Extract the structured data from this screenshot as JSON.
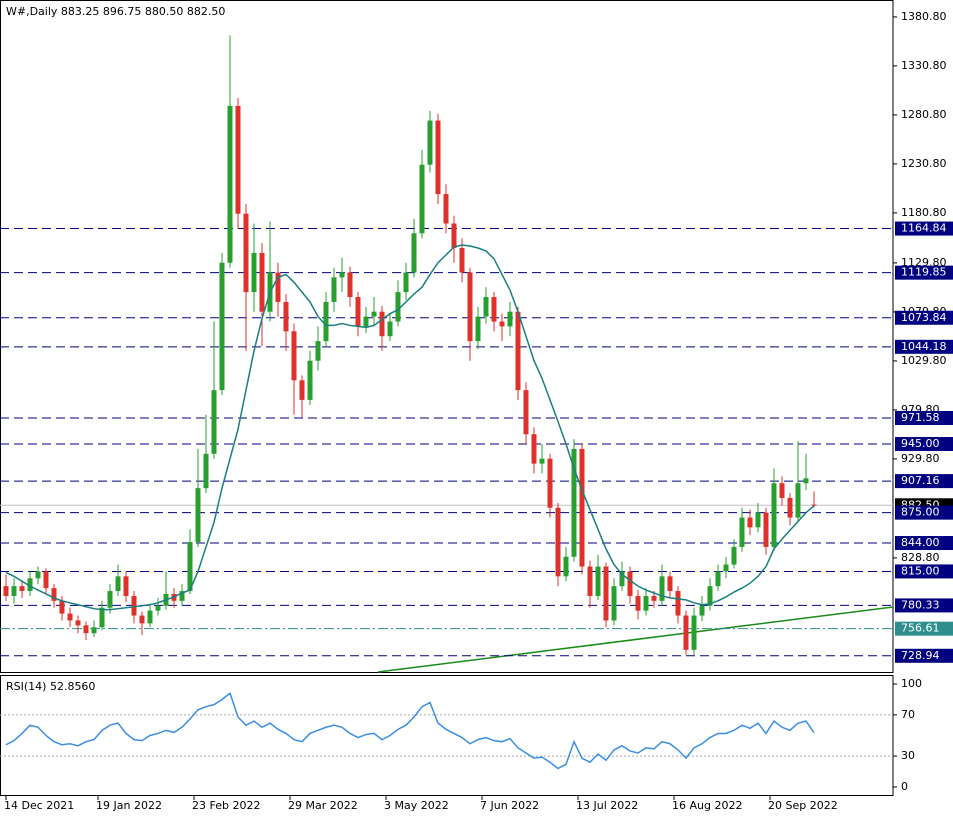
{
  "chart_data": {
    "type": "candlestick",
    "title": "W#,Daily  883.25 896.75 880.50 882.50",
    "up_color": "#27a12d",
    "down_color": "#e0302a",
    "ma_color": "#1a7f7f",
    "rsi_color": "#3a8ee6",
    "ylim": [
      712.4,
      1396
    ],
    "yticks": [
      {
        "value": 1380.8,
        "label": "1380.80"
      },
      {
        "value": 1330.8,
        "label": "1330.80"
      },
      {
        "value": 1280.8,
        "label": "1280.80"
      },
      {
        "value": 1230.8,
        "label": "1230.80"
      },
      {
        "value": 1180.8,
        "label": "1180.80"
      },
      {
        "value": 1129.8,
        "label": "1129.80"
      },
      {
        "value": 1079.8,
        "label": "1079.80"
      },
      {
        "value": 1029.8,
        "label": "1029.80"
      },
      {
        "value": 979.8,
        "label": "979.80"
      },
      {
        "value": 929.8,
        "label": "929.80"
      },
      {
        "value": 828.8,
        "label": "828.80"
      }
    ],
    "current": {
      "value": 882.5,
      "label": "882.50"
    },
    "levels": [
      {
        "value": 1164.84,
        "label": "1164.84",
        "color": "#000080",
        "dash": "dashed"
      },
      {
        "value": 1119.85,
        "label": "1119.85",
        "color": "#000080",
        "dash": "dashed"
      },
      {
        "value": 1073.84,
        "label": "1073.84",
        "color": "#000080",
        "dash": "dashed"
      },
      {
        "value": 1044.18,
        "label": "1044.18",
        "color": "#000080",
        "dash": "dashed"
      },
      {
        "value": 971.58,
        "label": "971.58",
        "color": "#000080",
        "dash": "dashed"
      },
      {
        "value": 945,
        "label": "945.00",
        "color": "#000080",
        "dash": "dashed"
      },
      {
        "value": 907.16,
        "label": "907.16",
        "color": "#000080",
        "dash": "dashed"
      },
      {
        "value": 875,
        "label": "875.00",
        "color": "#000080",
        "dash": "dashed"
      },
      {
        "value": 844,
        "label": "844.00",
        "color": "#000080",
        "dash": "dashed"
      },
      {
        "value": 815,
        "label": "815.00",
        "color": "#000080",
        "dash": "dashed"
      },
      {
        "value": 780.33,
        "label": "780.33",
        "color": "#000080",
        "dash": "dashed"
      },
      {
        "value": 756.61,
        "label": "756.61",
        "color": "#2f8f8f",
        "dash": "dashdot"
      },
      {
        "value": 728.94,
        "label": "728.94",
        "color": "#000080",
        "dash": "dashed"
      }
    ],
    "xticks": [
      {
        "value": 0,
        "label": "14 Dec 2021"
      },
      {
        "value": 11.5,
        "label": "19 Jan 2022"
      },
      {
        "value": 23.5,
        "label": "23 Feb 2022"
      },
      {
        "value": 35.5,
        "label": "29 Mar 2022"
      },
      {
        "value": 47.5,
        "label": "3 May 2022"
      },
      {
        "value": 59.5,
        "label": "7 Jun 2022"
      },
      {
        "value": 71.5,
        "label": "13 Jul 2022"
      },
      {
        "value": 83.5,
        "label": "16 Aug 2022"
      },
      {
        "value": 95.5,
        "label": "20 Sep 2022"
      }
    ],
    "candles": [
      [
        800,
        812,
        785,
        790
      ],
      [
        790,
        808,
        782,
        800
      ],
      [
        800,
        806,
        788,
        795
      ],
      [
        795,
        815,
        790,
        808
      ],
      [
        808,
        820,
        802,
        815
      ],
      [
        815,
        818,
        792,
        798
      ],
      [
        798,
        802,
        778,
        785
      ],
      [
        785,
        790,
        765,
        772
      ],
      [
        772,
        778,
        758,
        765
      ],
      [
        765,
        770,
        752,
        760
      ],
      [
        760,
        764,
        745,
        752
      ],
      [
        752,
        765,
        748,
        758
      ],
      [
        758,
        785,
        755,
        778
      ],
      [
        778,
        802,
        772,
        795
      ],
      [
        795,
        822,
        790,
        810
      ],
      [
        810,
        815,
        784,
        790
      ],
      [
        790,
        795,
        762,
        770
      ],
      [
        770,
        774,
        750,
        762
      ],
      [
        762,
        782,
        758,
        775
      ],
      [
        775,
        788,
        770,
        780
      ],
      [
        780,
        815,
        776,
        792
      ],
      [
        792,
        798,
        778,
        785
      ],
      [
        785,
        802,
        780,
        795
      ],
      [
        795,
        858,
        792,
        845
      ],
      [
        845,
        940,
        840,
        900
      ],
      [
        900,
        975,
        895,
        935
      ],
      [
        935,
        1070,
        930,
        1000
      ],
      [
        1000,
        1140,
        995,
        1130
      ],
      [
        1130,
        1362,
        1125,
        1290
      ],
      [
        1290,
        1298,
        1165,
        1180
      ],
      [
        1180,
        1190,
        1040,
        1100
      ],
      [
        1100,
        1170,
        1080,
        1140
      ],
      [
        1140,
        1150,
        1045,
        1080
      ],
      [
        1080,
        1172,
        1070,
        1120
      ],
      [
        1120,
        1130,
        1075,
        1090
      ],
      [
        1090,
        1098,
        1040,
        1060
      ],
      [
        1060,
        1068,
        975,
        1010
      ],
      [
        1010,
        1015,
        972,
        990
      ],
      [
        990,
        1040,
        985,
        1030
      ],
      [
        1030,
        1065,
        1020,
        1050
      ],
      [
        1050,
        1100,
        1045,
        1090
      ],
      [
        1090,
        1125,
        1080,
        1115
      ],
      [
        1115,
        1135,
        1100,
        1120
      ],
      [
        1120,
        1126,
        1085,
        1095
      ],
      [
        1095,
        1100,
        1055,
        1065
      ],
      [
        1065,
        1085,
        1058,
        1075
      ],
      [
        1075,
        1095,
        1065,
        1080
      ],
      [
        1080,
        1086,
        1040,
        1055
      ],
      [
        1055,
        1078,
        1050,
        1070
      ],
      [
        1070,
        1112,
        1065,
        1100
      ],
      [
        1100,
        1130,
        1092,
        1120
      ],
      [
        1120,
        1175,
        1115,
        1160
      ],
      [
        1160,
        1245,
        1155,
        1230
      ],
      [
        1230,
        1285,
        1222,
        1275
      ],
      [
        1275,
        1282,
        1190,
        1200
      ],
      [
        1200,
        1210,
        1160,
        1170
      ],
      [
        1170,
        1178,
        1130,
        1145
      ],
      [
        1145,
        1155,
        1110,
        1120
      ],
      [
        1120,
        1125,
        1030,
        1050
      ],
      [
        1050,
        1085,
        1042,
        1075
      ],
      [
        1075,
        1105,
        1068,
        1095
      ],
      [
        1095,
        1100,
        1060,
        1070
      ],
      [
        1070,
        1078,
        1050,
        1065
      ],
      [
        1065,
        1090,
        1055,
        1080
      ],
      [
        1080,
        1085,
        990,
        1000
      ],
      [
        1000,
        1008,
        945,
        955
      ],
      [
        955,
        962,
        915,
        925
      ],
      [
        925,
        945,
        915,
        930
      ],
      [
        930,
        935,
        870,
        880
      ],
      [
        880,
        885,
        800,
        810
      ],
      [
        810,
        840,
        805,
        830
      ],
      [
        830,
        950,
        825,
        940
      ],
      [
        940,
        945,
        812,
        820
      ],
      [
        820,
        826,
        778,
        790
      ],
      [
        790,
        832,
        786,
        820
      ],
      [
        820,
        824,
        758,
        765
      ],
      [
        765,
        808,
        760,
        800
      ],
      [
        800,
        825,
        795,
        815
      ],
      [
        815,
        820,
        782,
        790
      ],
      [
        790,
        796,
        766,
        775
      ],
      [
        775,
        798,
        770,
        790
      ],
      [
        790,
        795,
        778,
        785
      ],
      [
        785,
        822,
        780,
        810
      ],
      [
        810,
        815,
        788,
        795
      ],
      [
        795,
        800,
        762,
        770
      ],
      [
        770,
        775,
        730,
        735
      ],
      [
        735,
        778,
        730,
        770
      ],
      [
        770,
        790,
        764,
        780
      ],
      [
        780,
        808,
        775,
        800
      ],
      [
        800,
        822,
        795,
        815
      ],
      [
        815,
        830,
        808,
        822
      ],
      [
        822,
        848,
        818,
        840
      ],
      [
        840,
        880,
        835,
        870
      ],
      [
        870,
        878,
        852,
        860
      ],
      [
        860,
        885,
        855,
        875
      ],
      [
        875,
        880,
        832,
        840
      ],
      [
        840,
        920,
        836,
        905
      ],
      [
        905,
        912,
        882,
        890
      ],
      [
        890,
        895,
        862,
        870
      ],
      [
        870,
        948,
        866,
        905
      ],
      [
        905,
        935,
        898,
        910
      ],
      [
        883.25,
        896.75,
        880.5,
        882.5
      ]
    ],
    "ma": [
      814,
      810,
      805,
      800,
      796,
      792,
      788,
      785,
      783,
      781,
      779,
      777,
      776,
      776,
      777,
      778,
      779,
      780,
      781,
      783,
      786,
      789,
      793,
      796,
      815,
      840,
      865,
      900,
      930,
      960,
      1000,
      1040,
      1073,
      1100,
      1115,
      1118,
      1110,
      1100,
      1090,
      1075,
      1066,
      1066,
      1068,
      1066,
      1065,
      1064,
      1066,
      1072,
      1078,
      1082,
      1090,
      1098,
      1105,
      1118,
      1130,
      1138,
      1146,
      1148,
      1147,
      1145,
      1142,
      1134,
      1118,
      1102,
      1080,
      1055,
      1030,
      1012,
      990,
      968,
      945,
      920,
      898,
      878,
      858,
      838,
      822,
      812,
      806,
      800,
      796,
      793,
      790,
      788,
      787,
      786,
      783,
      781,
      782,
      785,
      789,
      794,
      798,
      803,
      810,
      820,
      838,
      848,
      857,
      866,
      875,
      882
    ],
    "rsi_title": "RSI(14) 52.8560",
    "rsi_ylim": [
      -7.8,
      107.8
    ],
    "rsi_yticks": [
      100,
      70,
      30,
      0
    ],
    "rsi_levels": [
      70,
      30
    ],
    "rsi": [
      41,
      45,
      52,
      60,
      58,
      50,
      44,
      41,
      42,
      40,
      44,
      46,
      55,
      60,
      62,
      52,
      46,
      45,
      50,
      52,
      55,
      53,
      58,
      66,
      75,
      78,
      80,
      85,
      91,
      68,
      60,
      64,
      58,
      62,
      56,
      52,
      46,
      44,
      52,
      55,
      58,
      60,
      58,
      52,
      48,
      51,
      52,
      46,
      50,
      56,
      60,
      68,
      78,
      82,
      62,
      56,
      52,
      48,
      42,
      46,
      48,
      45,
      44,
      47,
      38,
      33,
      28,
      29,
      24,
      18,
      22,
      44,
      28,
      24,
      32,
      26,
      36,
      40,
      35,
      33,
      38,
      37,
      44,
      42,
      36,
      28,
      38,
      42,
      48,
      52,
      52,
      55,
      60,
      57,
      62,
      52,
      64,
      58,
      55,
      62,
      64,
      52.856
    ]
  }
}
